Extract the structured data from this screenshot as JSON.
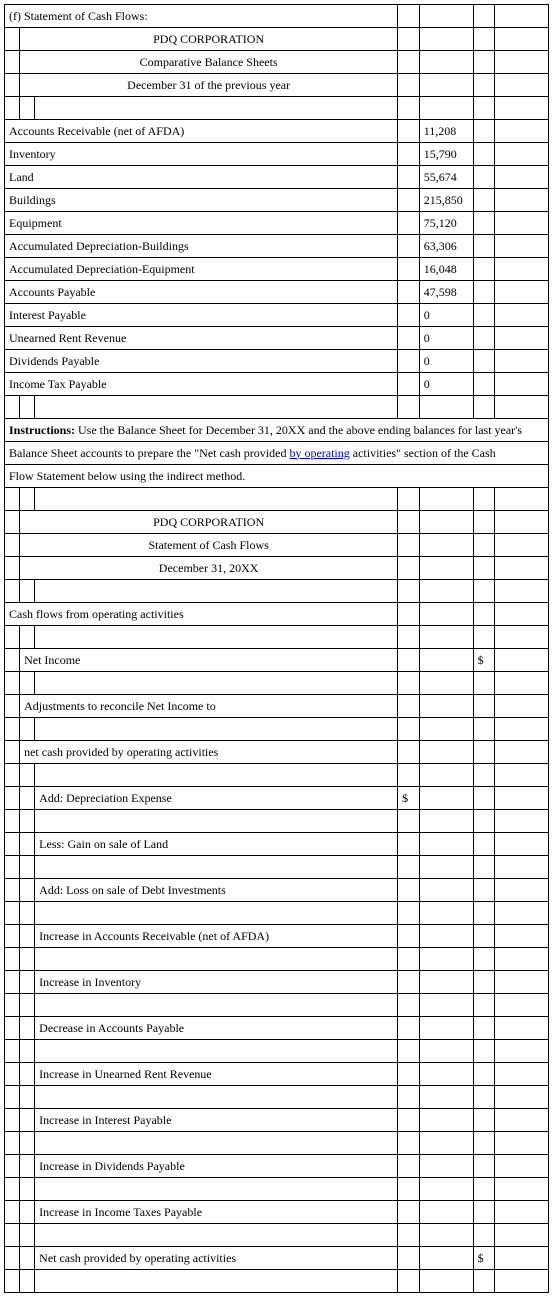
{
  "header": {
    "section_label": "(f) Statement of Cash Flows:",
    "corp": "PDQ CORPORATION",
    "subtitle1": "Comparative Balance Sheets",
    "subtitle2": "December 31 of the previous year"
  },
  "balance_items": [
    {
      "label": "Accounts Receivable (net of AFDA)",
      "value": "11,208"
    },
    {
      "label": "Inventory",
      "value": "15,790"
    },
    {
      "label": "Land",
      "value": "55,674"
    },
    {
      "label": "Buildings",
      "value": "215,850"
    },
    {
      "label": "Equipment",
      "value": "75,120"
    },
    {
      "label": "Accumulated Depreciation-Buildings",
      "value": "63,306"
    },
    {
      "label": "Accumulated Depreciation-Equipment",
      "value": "16,048"
    },
    {
      "label": "Accounts Payable",
      "value": "47,598"
    },
    {
      "label": "Interest Payable",
      "value": "0"
    },
    {
      "label": "Unearned Rent Revenue",
      "value": "0"
    },
    {
      "label": "Dividends Payable",
      "value": "0"
    },
    {
      "label": "Income Tax Payable",
      "value": "0"
    }
  ],
  "instructions": {
    "label": "Instructions:",
    "line1a": " Use the Balance Sheet for December 31, 20XX and the above ending balances for last year's",
    "line2a": "Balance Sheet accounts to prepare the \"Net cash provided ",
    "line2b": "by  operating",
    "line2c": " activities\" section of the Cash",
    "line3": "Flow Statement below using the indirect method."
  },
  "statement_header": {
    "corp": "PDQ CORPORATION",
    "title": "Statement of Cash Flows",
    "date": "December 31, 20XX"
  },
  "cashflow": {
    "section": "Cash flows from operating activities",
    "net_income": "Net Income",
    "adj_header": "Adjustments to reconcile Net Income to",
    "adj_sub": "net cash provided by operating activities",
    "items": [
      "Add: Depreciation Expense",
      "Less: Gain on sale of Land",
      "Add: Loss on sale of Debt Investments",
      "Increase in Accounts Receivable (net of AFDA)",
      "Increase in Inventory",
      "Decrease in Accounts Payable",
      "Increase in Unearned Rent Revenue",
      "Increase in Interest Payable",
      "Increase in Dividends Payable",
      "Increase in Income Taxes Payable"
    ],
    "total": "Net cash provided by operating activities"
  },
  "symbols": {
    "dollar": "$"
  }
}
